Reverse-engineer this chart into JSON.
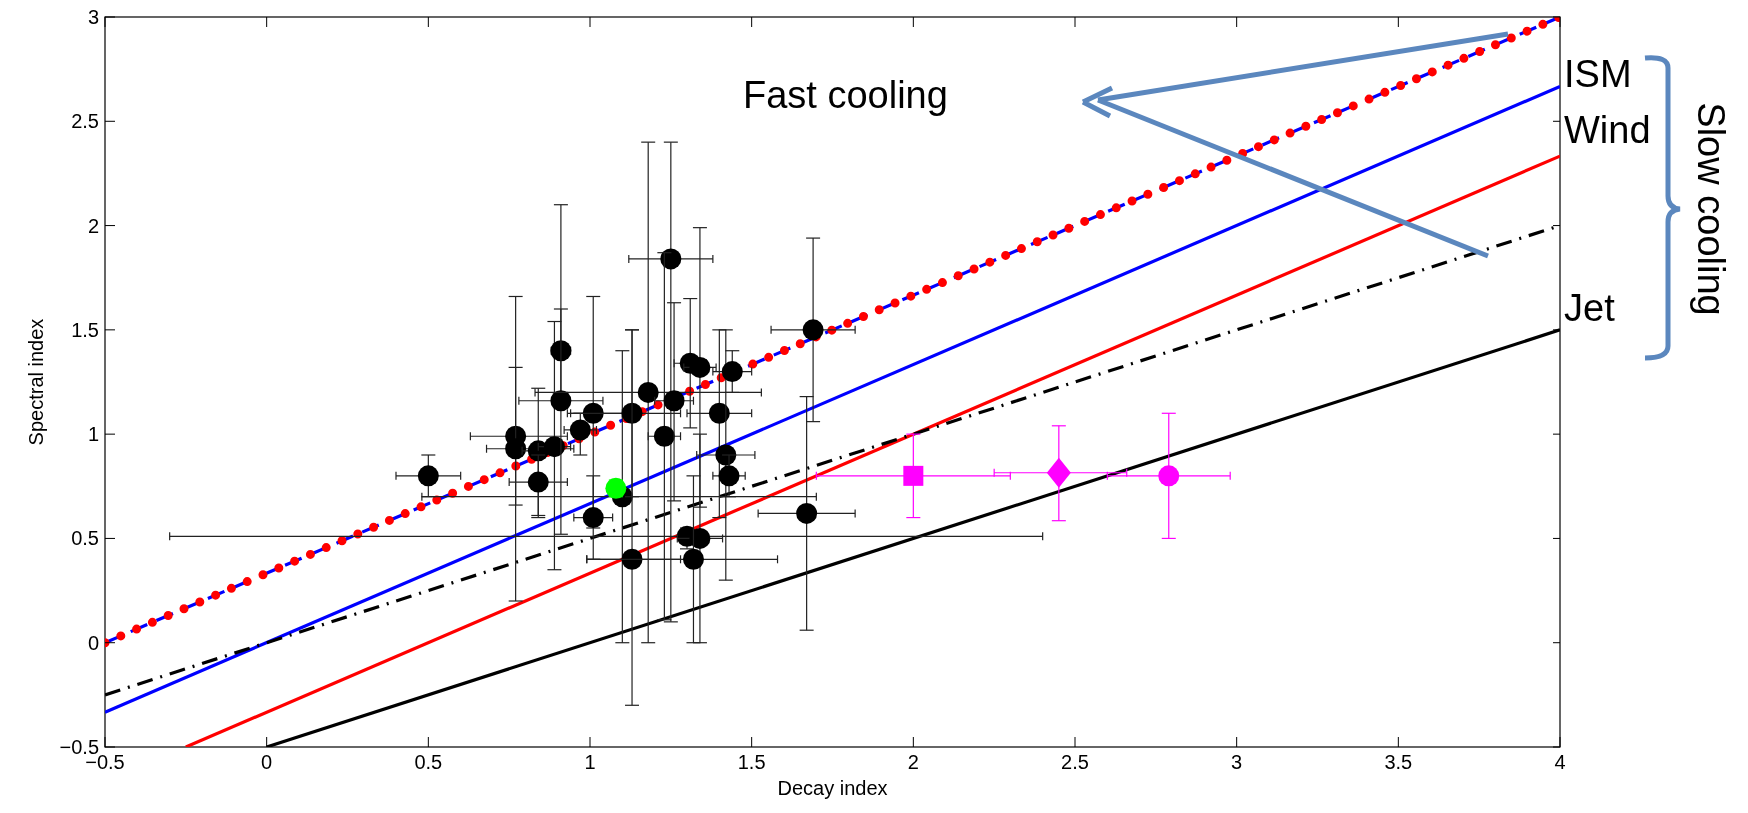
{
  "chart_data": {
    "type": "scatter",
    "xlabel": "Decay index",
    "ylabel": "Spectral index",
    "xlim": [
      -0.5,
      4
    ],
    "xticks": [
      {
        "value": -0.5,
        "label": "−0.5"
      },
      0,
      0.5,
      1,
      1.5,
      2,
      2.5,
      3,
      3.5,
      4
    ],
    "ylim": [
      -0.5,
      3
    ],
    "yticks": [
      {
        "value": -0.5,
        "label": "−0.5"
      },
      0,
      0.5,
      1,
      1.5,
      2,
      2.5,
      3
    ],
    "grid": false,
    "annotations": [
      "Fast cooling",
      "Slow cooling",
      "ISM",
      "Wind",
      "Jet"
    ],
    "series": [
      {
        "type": "line",
        "color": "#0000ff",
        "line_style": "dashed",
        "x": [
          -0.5,
          4
        ],
        "values": [
          0,
          3
        ]
      },
      {
        "type": "line",
        "color": "#ff0000",
        "line_style": "dotted",
        "x": [
          -0.5,
          4
        ],
        "values": [
          0,
          3
        ]
      },
      {
        "type": "line",
        "color": "#0000ff",
        "line_style": "solid",
        "x": [
          -0.5,
          4
        ],
        "values": [
          -0.333,
          2.667
        ]
      },
      {
        "type": "line",
        "color": "#ff0000",
        "line_style": "solid",
        "x": [
          -0.25,
          4
        ],
        "values": [
          -0.5,
          2.333
        ]
      },
      {
        "type": "line",
        "color": "#000000",
        "line_style": "dashdot",
        "x": [
          -0.5,
          4
        ],
        "values": [
          -0.25,
          2
        ]
      },
      {
        "type": "line",
        "color": "#000000",
        "line_style": "solid",
        "x": [
          0,
          4
        ],
        "values": [
          -0.5,
          1.5
        ]
      },
      {
        "color": "#000000",
        "marker": "circle",
        "x": [
          0.5,
          0.77,
          0.77,
          0.84,
          0.84,
          0.89,
          0.91,
          0.91,
          0.97,
          1.01,
          1.01,
          1.1,
          1.13,
          1.13,
          1.18,
          1.25,
          1.23,
          1.26,
          1.31,
          1.34,
          1.3,
          1.34,
          1.32,
          1.4,
          1.42,
          1.43,
          1.44,
          1.69,
          1.67
        ],
        "values": [
          0.8,
          0.99,
          0.93,
          0.92,
          0.77,
          0.94,
          1.4,
          1.16,
          1.02,
          1.1,
          0.6,
          0.7,
          1.1,
          0.4,
          1.2,
          1.84,
          0.99,
          1.16,
          1.34,
          1.32,
          0.51,
          0.5,
          0.4,
          1.1,
          0.9,
          0.8,
          1.3,
          1.5,
          0.62
        ],
        "errors": [
          [
            0.7,
            0.9
          ],
          [
            0.2,
            1.66
          ],
          [
            0.66,
            1.32
          ],
          [
            0.61,
            1.22
          ],
          [
            0.6,
            0.9
          ],
          [
            0.35,
            1.54
          ],
          [
            1.2,
            1.6
          ],
          [
            0.52,
            2.1
          ],
          [
            0.9,
            1.1
          ],
          [
            0.55,
            1.66
          ],
          [
            0.4,
            0.8
          ],
          [
            0,
            1.4
          ],
          [
            0.7,
            1.5
          ],
          [
            -0.3,
            1.5
          ],
          [
            0,
            2.4
          ],
          [
            0.1,
            2.4
          ],
          [
            0.11,
            1.87
          ],
          [
            0.68,
            1.63
          ],
          [
            1.03,
            1.65
          ],
          [
            0.65,
            1.99
          ],
          [
            0.45,
            0.55
          ],
          [
            0,
            1.0
          ],
          [
            0,
            0.8
          ],
          [
            0.6,
            1.5
          ],
          [
            0.3,
            1.5
          ],
          [
            0.7,
            0.9
          ],
          [
            1.2,
            1.4
          ],
          [
            1.06,
            1.94
          ],
          [
            0.06,
            1.18
          ]
        ],
        "xerrors": [
          0.1,
          [
            0.63,
            0.93
          ],
          [
            0.68,
            0.95
          ],
          0.05,
          0.09,
          0.05,
          0.03,
          0.13,
          0.05,
          [
            0.93,
            1.1
          ],
          0.06,
          [
            0.48,
            1.7
          ],
          [
            0.94,
            1.28
          ],
          [
            0.99,
            1.28
          ],
          [
            0.83,
            1.53
          ],
          0.13,
          0.05,
          0.06,
          0.05,
          0.05,
          [
            -0.3,
            2.4
          ],
          0.07,
          [
            0.99,
            1.58
          ],
          0.1,
          0.09,
          0.05,
          0.06,
          0.13,
          [
            1.52,
            1.82
          ]
        ]
      },
      {
        "color": "#00ff00",
        "marker": "circle",
        "x": [
          1.08
        ],
        "values": [
          0.74
        ],
        "errors": [
          0.04
        ]
      },
      {
        "color": "#ff00ff",
        "marker": "square",
        "x": [
          2.0
        ],
        "values": [
          0.8
        ],
        "errors": [
          0.2
        ],
        "xerrors": [
          0.3
        ]
      },
      {
        "color": "#ff00ff",
        "marker": "diamond",
        "x": [
          2.45
        ],
        "values": [
          0.815
        ],
        "errors": [
          [
            0.585,
            1.04
          ]
        ],
        "xerrors": [
          [
            2.25,
            2.66
          ]
        ]
      },
      {
        "color": "#ff00ff",
        "marker": "circle",
        "x": [
          2.79
        ],
        "values": [
          0.8
        ],
        "errors": [
          0.3
        ],
        "xerrors": [
          0.19
        ]
      }
    ]
  }
}
